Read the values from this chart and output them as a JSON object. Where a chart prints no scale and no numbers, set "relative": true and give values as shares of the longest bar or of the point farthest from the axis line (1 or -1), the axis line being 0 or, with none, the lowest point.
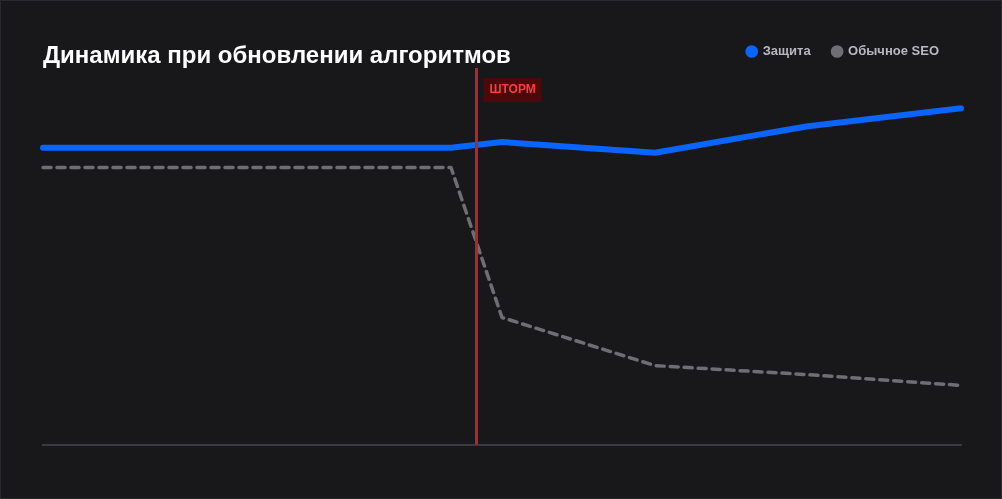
{
  "chart_data": {
    "type": "line",
    "title": "Динамика при обновлении алгоритмов",
    "relative": true,
    "categories": [
      null,
      null,
      null,
      null,
      null,
      null,
      null,
      null,
      null,
      null,
      null,
      null,
      null,
      null,
      null,
      null,
      null,
      null,
      null
    ],
    "legend": "top right",
    "marker": "none",
    "series": [
      {
        "name": "Защита",
        "color": "#0a64ff",
        "line_style": "solid",
        "values": [
          0.883,
          null,
          null,
          null,
          null,
          null,
          null,
          null,
          0.883,
          0.9,
          null,
          null,
          0.868,
          null,
          null,
          0.947,
          null,
          null,
          1
        ]
      },
      {
        "name": "Обычное SEO",
        "color": "#6e6e73",
        "line_style": "dashed",
        "values": [
          0.824,
          null,
          null,
          null,
          null,
          null,
          null,
          null,
          0.824,
          0.378,
          null,
          null,
          0.235,
          null,
          null,
          0.208,
          null,
          null,
          0.176
        ]
      }
    ],
    "annotations": [
      "ШТОРМ"
    ]
  }
}
